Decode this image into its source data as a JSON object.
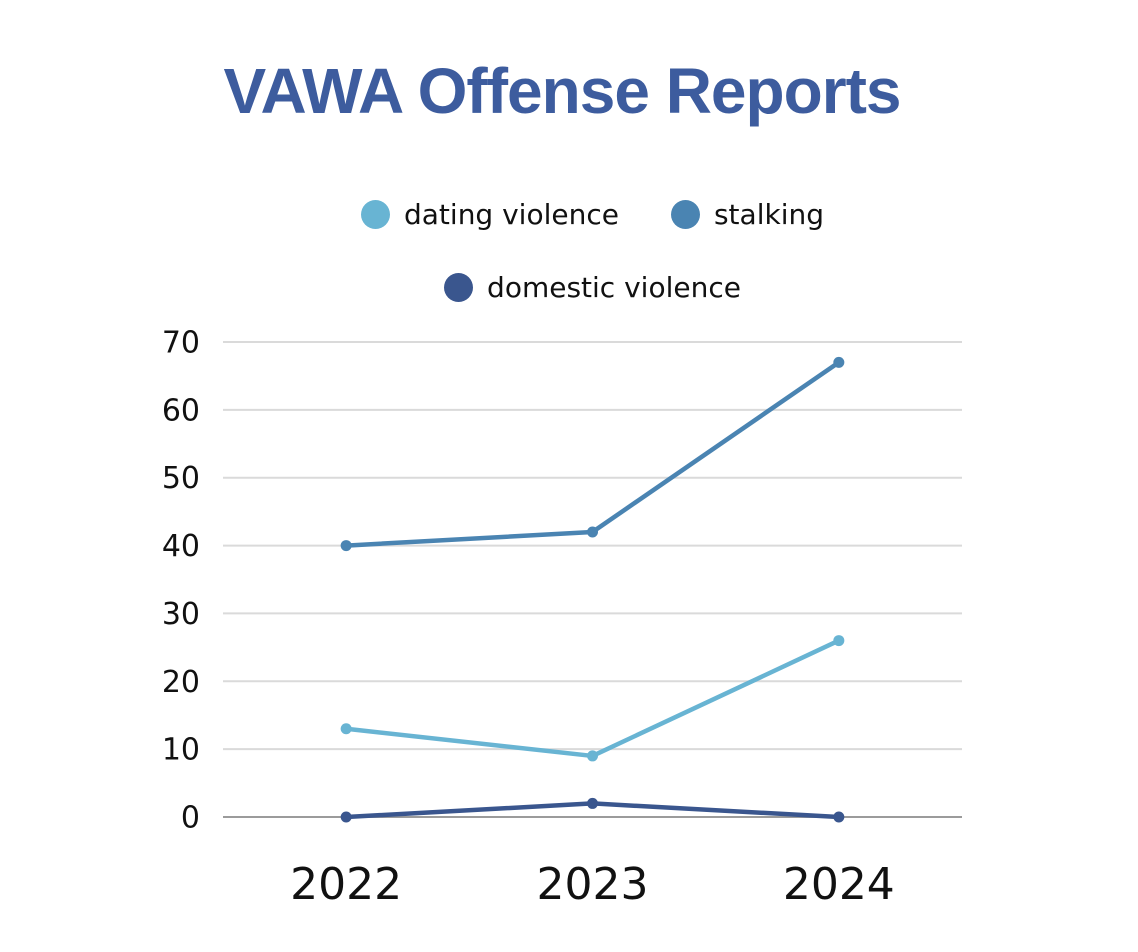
{
  "colors": {
    "title": "#3D5C9E",
    "grid": "#DADADA",
    "baseline": "#9B9B9B",
    "axis_text": "#111111",
    "background": "#FFFFFF"
  },
  "chart_data": {
    "type": "line",
    "title": "VAWA Offense Reports",
    "categories": [
      "2022",
      "2023",
      "2024"
    ],
    "series": [
      {
        "name": "dating violence",
        "color": "#68B4D3",
        "values": [
          13,
          9,
          26
        ]
      },
      {
        "name": "stalking",
        "color": "#4A84B2",
        "values": [
          40,
          42,
          67
        ]
      },
      {
        "name": "domestic violence",
        "color": "#3A568E",
        "values": [
          0,
          2,
          0
        ]
      }
    ],
    "xlabel": "",
    "ylabel": "",
    "ylim": [
      0,
      70
    ],
    "yticks": [
      0,
      10,
      20,
      30,
      40,
      50,
      60,
      70
    ],
    "grid": true,
    "markers": true,
    "legend_position": "top",
    "legend_rows": [
      [
        0,
        1
      ],
      [
        2
      ]
    ]
  }
}
